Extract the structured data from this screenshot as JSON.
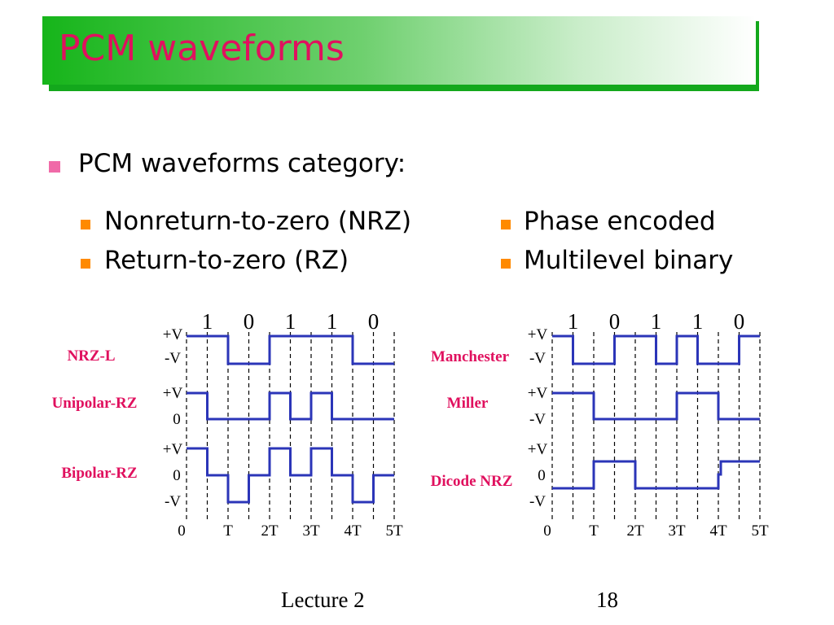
{
  "title": "PCM waveforms",
  "bullet": "PCM waveforms category:",
  "sub_bullets_left": [
    "Nonreturn-to-zero (NRZ)",
    "Return-to-zero (RZ)"
  ],
  "sub_bullets_right": [
    "Phase encoded",
    "Multilevel binary"
  ],
  "bits": [
    "1",
    "0",
    "1",
    "1",
    "0"
  ],
  "time_labels": [
    "0",
    "T",
    "2T",
    "3T",
    "4T",
    "5T"
  ],
  "left_panel": [
    {
      "name": "NRZ-L",
      "levels": [
        "+V",
        "-V"
      ],
      "signal": [
        1,
        1,
        0,
        0,
        1,
        1,
        1,
        1,
        0,
        0
      ]
    },
    {
      "name": "Unipolar-RZ",
      "levels": [
        "+V",
        "0"
      ],
      "signal": [
        1,
        0,
        0,
        0,
        1,
        0,
        1,
        0,
        0,
        0
      ]
    },
    {
      "name": "Bipolar-RZ",
      "levels": [
        "+V",
        "0",
        "-V"
      ],
      "signal": [
        1,
        0,
        0,
        0,
        1,
        0,
        1,
        0,
        0,
        0
      ],
      "bipolar": [
        1,
        0,
        -1,
        0,
        1,
        0,
        1,
        0,
        -1,
        0
      ]
    }
  ],
  "right_panel": [
    {
      "name": "Manchester",
      "levels": [
        "+V",
        "-V"
      ]
    },
    {
      "name": "Miller",
      "levels": [
        "+V",
        "-V"
      ]
    },
    {
      "name": "Dicode NRZ",
      "levels": [
        "+V",
        "0",
        "-V"
      ]
    }
  ],
  "footer": {
    "left": "Lecture 2",
    "right": "18"
  },
  "colors": {
    "title": "#e0105e",
    "label": "#e0105e",
    "wave": "#2b35b8",
    "bullet_main": "#f06aa8",
    "bullet_sub": "#ff8a00"
  }
}
